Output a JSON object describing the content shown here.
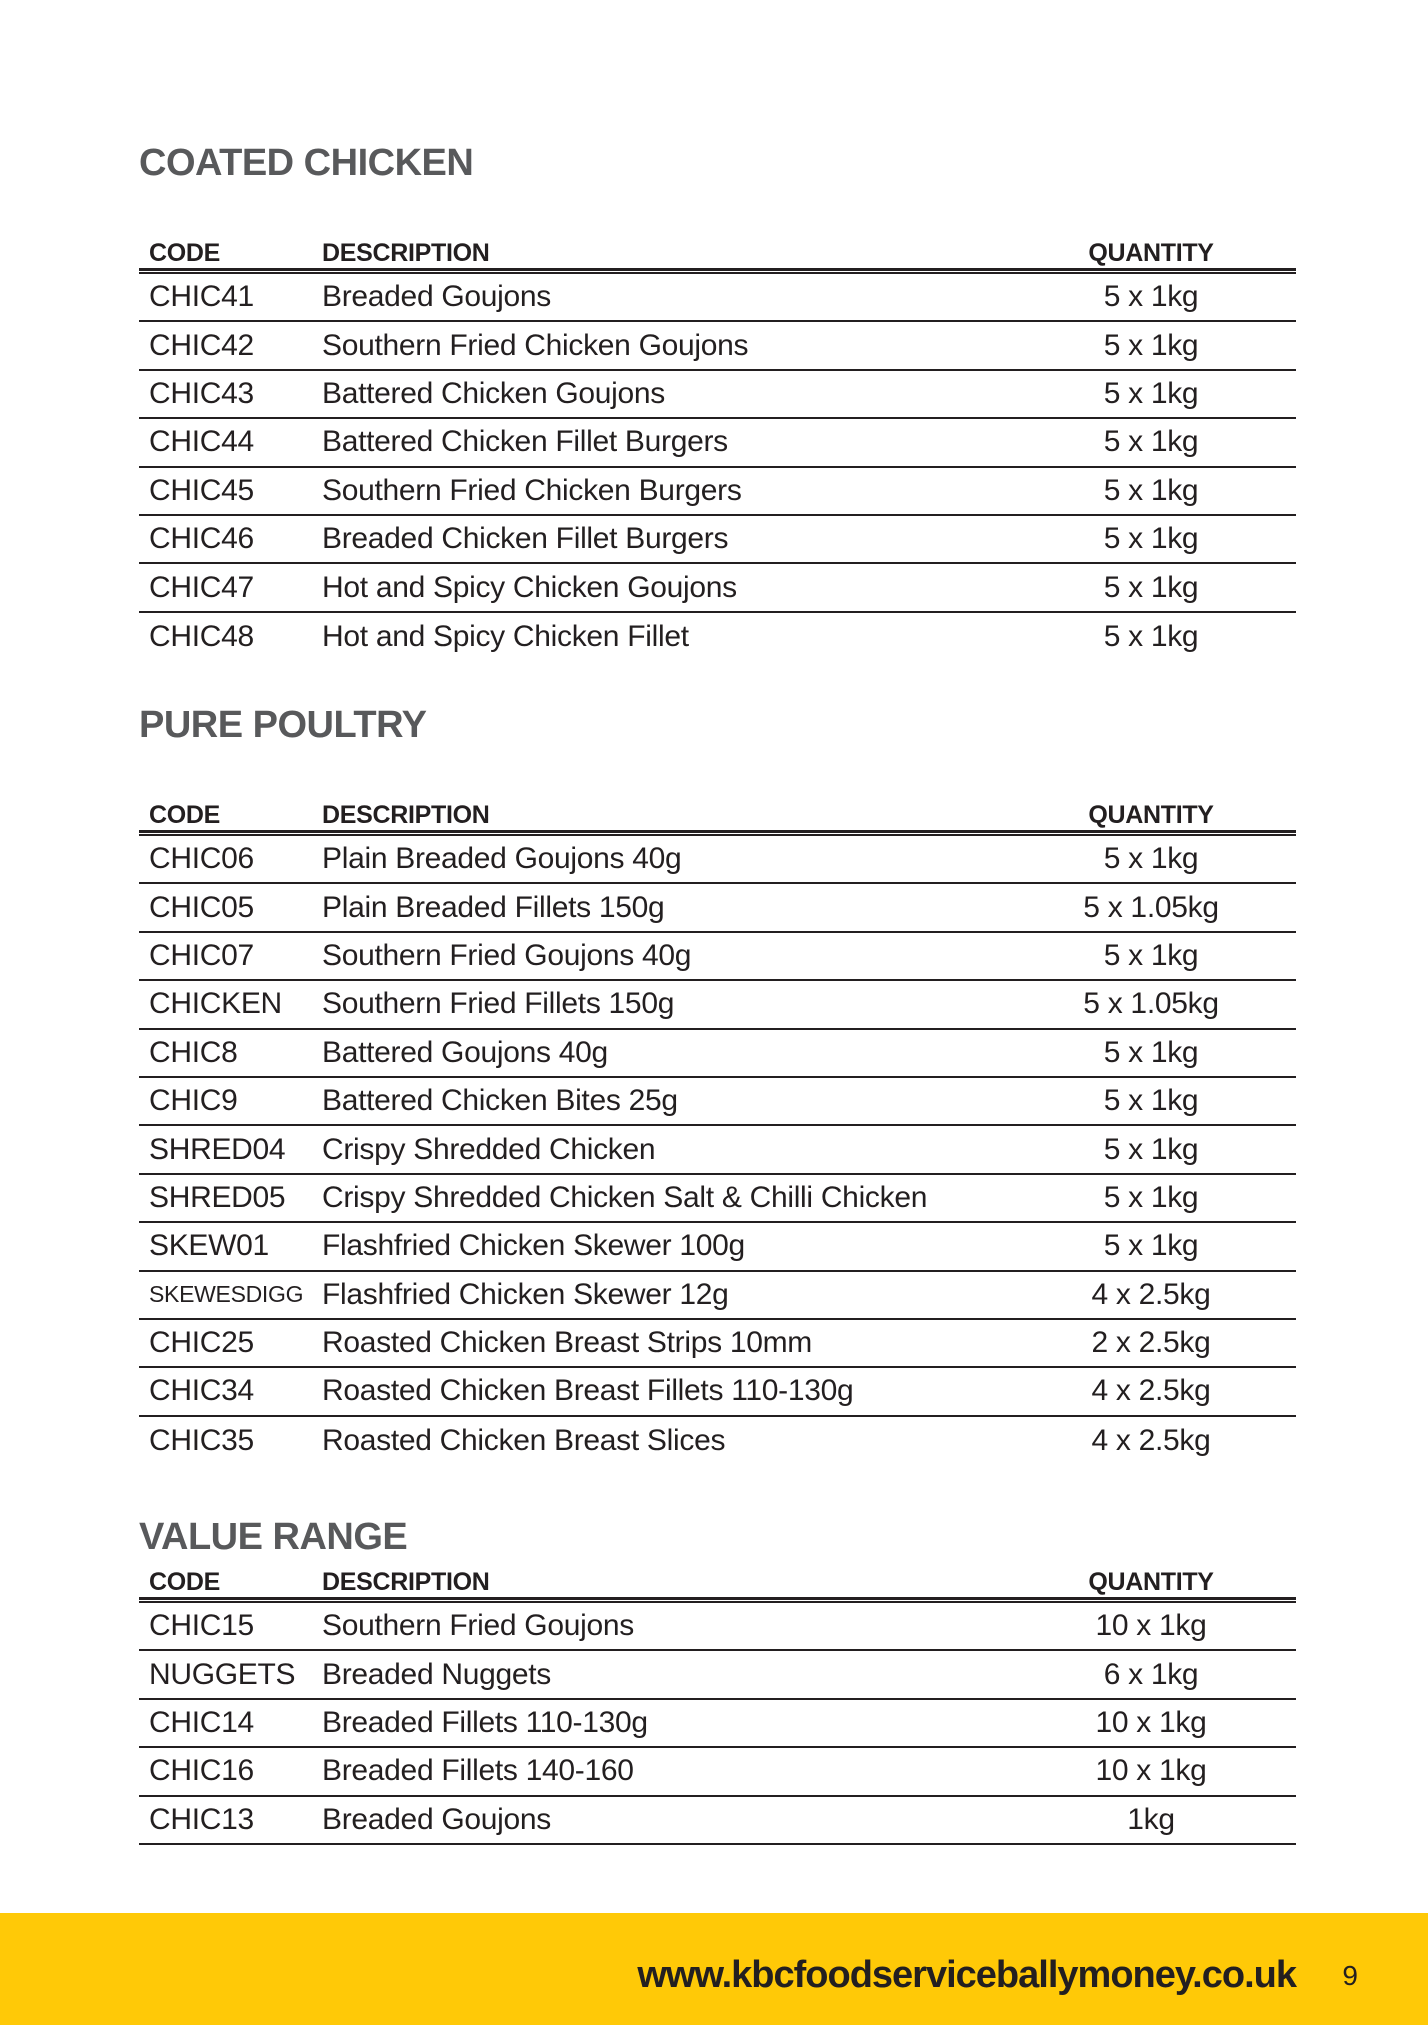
{
  "page": {
    "colors": {
      "accent_yellow": "#FFC907",
      "text_dark": "#231F20",
      "heading_gray": "#58595B"
    },
    "sections": [
      {
        "title": "COATED CHICKEN",
        "columns": {
          "code": "CODE",
          "description": "DESCRIPTION",
          "quantity": "QUANTITY"
        },
        "last_row_divider": false,
        "rows": [
          {
            "code": "CHIC41",
            "description": "Breaded Goujons",
            "quantity": "5 x 1kg"
          },
          {
            "code": "CHIC42",
            "description": "Southern Fried Chicken Goujons",
            "quantity": "5 x 1kg"
          },
          {
            "code": "CHIC43",
            "description": "Battered Chicken Goujons",
            "quantity": "5 x 1kg"
          },
          {
            "code": "CHIC44",
            "description": "Battered Chicken Fillet Burgers",
            "quantity": "5 x 1kg"
          },
          {
            "code": "CHIC45",
            "description": "Southern Fried Chicken Burgers",
            "quantity": "5 x 1kg"
          },
          {
            "code": "CHIC46",
            "description": "Breaded Chicken Fillet Burgers",
            "quantity": "5 x 1kg"
          },
          {
            "code": "CHIC47",
            "description": "Hot and Spicy Chicken Goujons",
            "quantity": "5 x 1kg"
          },
          {
            "code": "CHIC48",
            "description": "Hot and Spicy Chicken Fillet",
            "quantity": "5 x 1kg"
          }
        ]
      },
      {
        "title": "PURE POULTRY",
        "columns": {
          "code": "CODE",
          "description": "DESCRIPTION",
          "quantity": "QUANTITY"
        },
        "last_row_divider": false,
        "rows": [
          {
            "code": "CHIC06",
            "description": "Plain Breaded Goujons 40g",
            "quantity": "5 x 1kg"
          },
          {
            "code": "CHIC05",
            "description": "Plain Breaded Fillets 150g",
            "quantity": "5 x 1.05kg"
          },
          {
            "code": "CHIC07",
            "description": "Southern Fried Goujons 40g",
            "quantity": "5 x 1kg"
          },
          {
            "code": "CHICKEN",
            "description": "Southern Fried Fillets 150g",
            "quantity": "5 x 1.05kg"
          },
          {
            "code": "CHIC8",
            "description": "Battered Goujons 40g",
            "quantity": "5 x 1kg"
          },
          {
            "code": "CHIC9",
            "description": "Battered Chicken Bites 25g",
            "quantity": "5 x 1kg"
          },
          {
            "code": "SHRED04",
            "description": "Crispy Shredded Chicken",
            "quantity": "5 x 1kg"
          },
          {
            "code": "SHRED05",
            "description": "Crispy Shredded Chicken Salt & Chilli Chicken",
            "quantity": "5 x 1kg"
          },
          {
            "code": "SKEW01",
            "description": "Flashfried Chicken Skewer 100g",
            "quantity": "5 x 1kg"
          },
          {
            "code": "SKEWESDIGG",
            "description": "Flashfried Chicken Skewer 12g",
            "quantity": "4 x 2.5kg"
          },
          {
            "code": "CHIC25",
            "description": "Roasted Chicken Breast Strips 10mm",
            "quantity": "2 x 2.5kg"
          },
          {
            "code": "CHIC34",
            "description": "Roasted Chicken Breast Fillets 110-130g",
            "quantity": "4 x 2.5kg"
          },
          {
            "code": "CHIC35",
            "description": "Roasted Chicken Breast Slices",
            "quantity": "4 x 2.5kg"
          }
        ]
      },
      {
        "title": "VALUE RANGE",
        "columns": {
          "code": "CODE",
          "description": "DESCRIPTION",
          "quantity": "QUANTITY"
        },
        "last_row_divider": true,
        "rows": [
          {
            "code": "CHIC15",
            "description": "Southern Fried Goujons",
            "quantity": "10 x 1kg"
          },
          {
            "code": "NUGGETS",
            "description": "Breaded Nuggets",
            "quantity": "6 x 1kg"
          },
          {
            "code": "CHIC14",
            "description": "Breaded Fillets 110-130g",
            "quantity": "10 x 1kg"
          },
          {
            "code": "CHIC16",
            "description": "Breaded Fillets 140-160",
            "quantity": "10 x 1kg"
          },
          {
            "code": "CHIC13",
            "description": "Breaded Goujons",
            "quantity": "1kg"
          }
        ]
      }
    ],
    "footer": {
      "website": "www.kbcfoodserviceballymoney.co.uk",
      "page_number": "9"
    }
  }
}
